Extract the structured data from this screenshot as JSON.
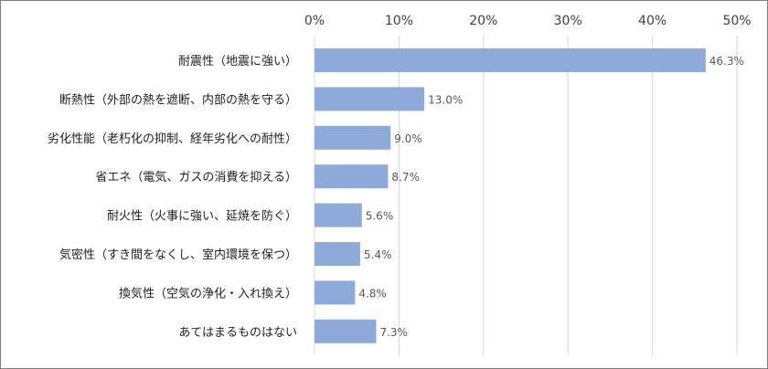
{
  "chart_data": {
    "type": "bar",
    "orientation": "horizontal",
    "categories": [
      "耐震性（地震に強い）",
      "断熱性（外部の熱を遮断、内部の熱を守る）",
      "劣化性能（老朽化の抑制、経年劣化への耐性）",
      "省エネ（電気、ガスの消費を抑える）",
      "耐火性（火事に強い、延焼を防ぐ）",
      "気密性（すき間をなくし、室内環境を保つ）",
      "換気性（空気の浄化・入れ換え）",
      "あてはまるものはない"
    ],
    "values": [
      46.3,
      13.0,
      9.0,
      8.7,
      5.6,
      5.4,
      4.8,
      7.3
    ],
    "data_labels": [
      "46.3%",
      "13.0%",
      "9.0%",
      "8.7%",
      "5.6%",
      "5.4%",
      "4.8%",
      "7.3%"
    ],
    "x_ticks": [
      "0%",
      "10%",
      "20%",
      "30%",
      "40%",
      "50%"
    ],
    "xlim": [
      0,
      50
    ],
    "tick_step": 10,
    "axis_position": "top",
    "grid": true,
    "legend": "none",
    "title": "",
    "xlabel": "",
    "ylabel": "",
    "colors": {
      "bar": "#8eaadb",
      "grid": "#d9d9d9",
      "border": "#7f7f7f"
    }
  }
}
